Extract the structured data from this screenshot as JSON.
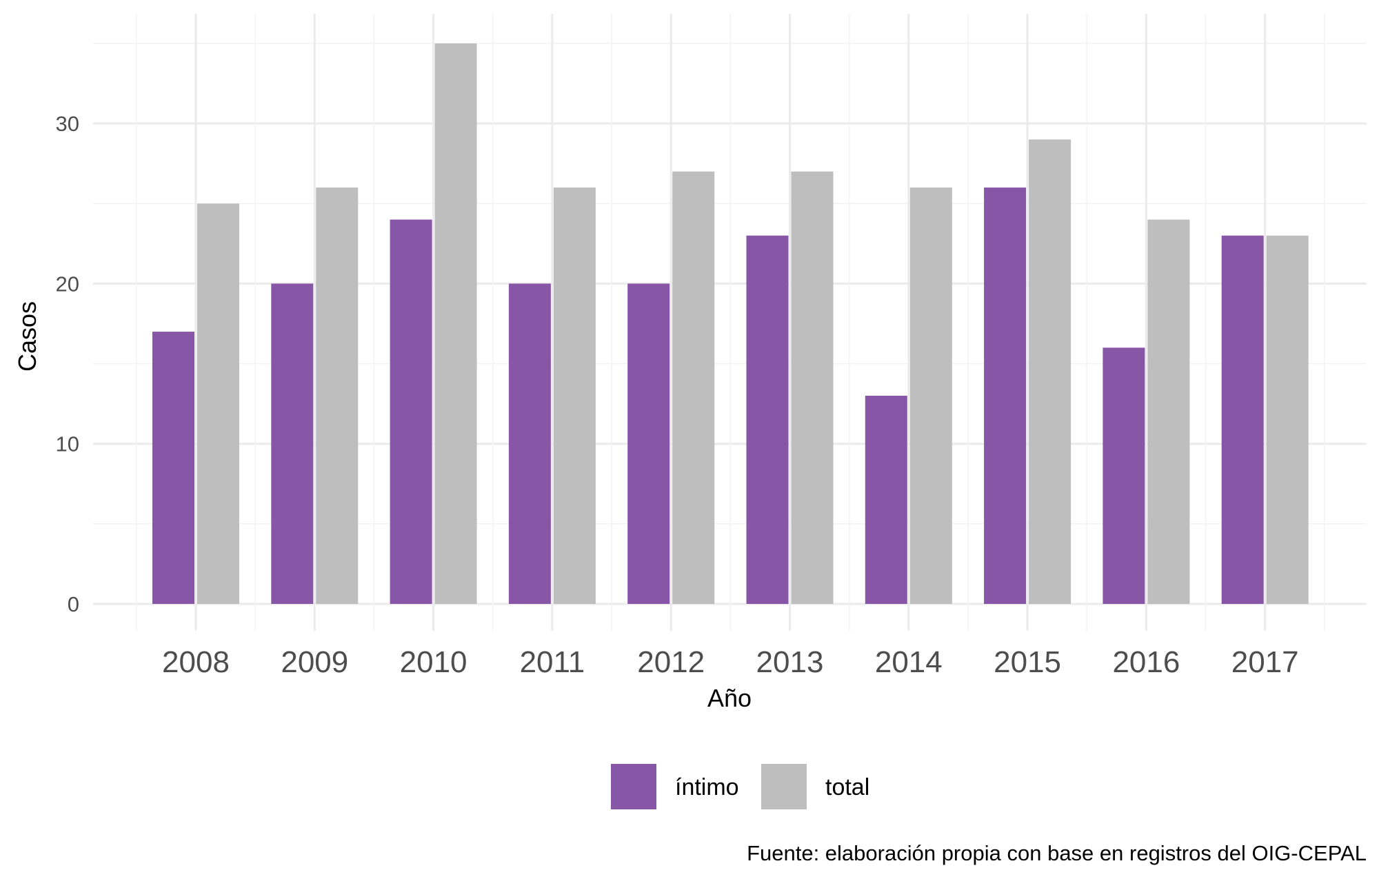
{
  "chart_data": {
    "type": "bar",
    "title": "",
    "xlabel": "Año",
    "ylabel": "Casos",
    "categories": [
      "2008",
      "2009",
      "2010",
      "2011",
      "2012",
      "2013",
      "2014",
      "2015",
      "2016",
      "2017"
    ],
    "series": [
      {
        "name": "íntimo",
        "color": "#8856a7",
        "values": [
          17,
          20,
          24,
          20,
          20,
          23,
          13,
          26,
          16,
          23
        ]
      },
      {
        "name": "total",
        "color": "#bebebe",
        "values": [
          25,
          26,
          35,
          26,
          27,
          27,
          26,
          29,
          24,
          23
        ]
      }
    ],
    "ylim": [
      0,
      35
    ],
    "yticks": [
      0,
      10,
      20,
      30
    ],
    "grid": true,
    "legend_position": "bottom",
    "caption": "Fuente: elaboración propia con base en registros del OIG-CEPAL"
  }
}
